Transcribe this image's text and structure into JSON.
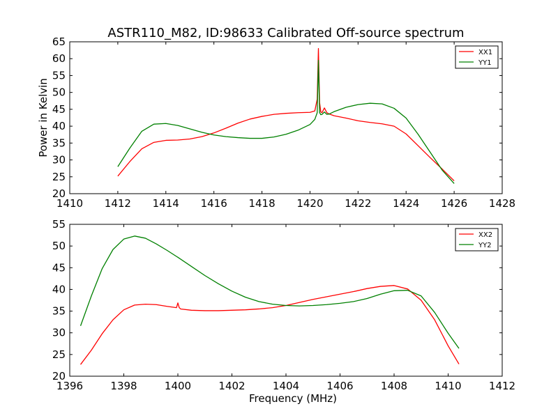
{
  "figure": {
    "title": "ASTR110_M82, ID:98633 Calibrated Off-source spectrum"
  },
  "chart_data": [
    {
      "type": "line",
      "title": "ASTR110_M82, ID:98633 Calibrated Off-source spectrum",
      "xlabel": "",
      "ylabel": "Power in Kelvin",
      "xlim": [
        1410,
        1428
      ],
      "ylim": [
        20,
        65
      ],
      "xticks": [
        1410,
        1412,
        1414,
        1416,
        1418,
        1420,
        1422,
        1424,
        1426,
        1428
      ],
      "yticks": [
        20,
        25,
        30,
        35,
        40,
        45,
        50,
        55,
        60,
        65
      ],
      "grid": false,
      "legend": "top-right",
      "series": [
        {
          "name": "XX1",
          "color": "#ff0000",
          "x": [
            1412.0,
            1412.5,
            1413.0,
            1413.5,
            1414.0,
            1414.5,
            1415.0,
            1415.5,
            1416.0,
            1416.5,
            1417.0,
            1417.5,
            1418.0,
            1418.5,
            1419.0,
            1419.5,
            1420.0,
            1420.2,
            1420.3,
            1420.35,
            1420.4,
            1420.45,
            1420.5,
            1420.6,
            1420.7,
            1420.8,
            1421.0,
            1421.5,
            1422.0,
            1422.5,
            1423.0,
            1423.5,
            1424.0,
            1424.5,
            1425.0,
            1425.5,
            1426.0
          ],
          "y": [
            25.2,
            29.5,
            33.3,
            35.2,
            35.8,
            35.9,
            36.2,
            36.9,
            38.0,
            39.4,
            40.9,
            42.1,
            42.9,
            43.5,
            43.8,
            44.0,
            44.1,
            44.5,
            48.0,
            63.0,
            47.0,
            44.2,
            44.0,
            45.4,
            44.0,
            43.6,
            43.1,
            42.4,
            41.6,
            41.1,
            40.7,
            40.0,
            37.7,
            34.2,
            30.7,
            27.3,
            23.8
          ]
        },
        {
          "name": "YY1",
          "color": "#008000",
          "x": [
            1412.0,
            1412.5,
            1413.0,
            1413.5,
            1414.0,
            1414.5,
            1415.0,
            1415.5,
            1416.0,
            1416.5,
            1417.0,
            1417.5,
            1418.0,
            1418.5,
            1419.0,
            1419.5,
            1420.0,
            1420.2,
            1420.3,
            1420.35,
            1420.4,
            1420.45,
            1420.5,
            1420.6,
            1420.7,
            1420.8,
            1421.0,
            1421.5,
            1422.0,
            1422.5,
            1423.0,
            1423.5,
            1424.0,
            1424.5,
            1425.0,
            1425.5,
            1426.0
          ],
          "y": [
            28.0,
            33.5,
            38.5,
            40.6,
            40.8,
            40.2,
            39.2,
            38.2,
            37.4,
            36.9,
            36.6,
            36.4,
            36.4,
            36.8,
            37.6,
            38.8,
            40.5,
            42.0,
            44.0,
            59.5,
            44.0,
            43.4,
            43.5,
            44.2,
            43.5,
            43.6,
            44.3,
            45.6,
            46.4,
            46.8,
            46.6,
            45.3,
            42.4,
            37.6,
            32.3,
            27.0,
            23.0
          ]
        }
      ]
    },
    {
      "type": "line",
      "title": "",
      "xlabel": "Frequency (MHz)",
      "ylabel": "",
      "xlim": [
        1396,
        1412
      ],
      "ylim": [
        20,
        55
      ],
      "xticks": [
        1396,
        1398,
        1400,
        1402,
        1404,
        1406,
        1408,
        1410,
        1412
      ],
      "yticks": [
        20,
        25,
        30,
        35,
        40,
        45,
        50,
        55
      ],
      "grid": false,
      "legend": "top-right",
      "series": [
        {
          "name": "XX2",
          "color": "#ff0000",
          "x": [
            1396.4,
            1396.8,
            1397.2,
            1397.6,
            1398.0,
            1398.4,
            1398.8,
            1399.2,
            1399.6,
            1399.95,
            1400.0,
            1400.05,
            1400.1,
            1400.5,
            1401.0,
            1401.5,
            1402.0,
            1402.5,
            1403.0,
            1403.5,
            1404.0,
            1404.5,
            1405.0,
            1405.5,
            1406.0,
            1406.5,
            1407.0,
            1407.5,
            1408.0,
            1408.5,
            1409.0,
            1409.5,
            1410.0,
            1410.4
          ],
          "y": [
            22.7,
            26.0,
            29.8,
            33.0,
            35.3,
            36.4,
            36.6,
            36.5,
            36.1,
            35.8,
            36.9,
            35.8,
            35.5,
            35.2,
            35.1,
            35.1,
            35.2,
            35.3,
            35.5,
            35.8,
            36.3,
            37.0,
            37.7,
            38.3,
            38.9,
            39.5,
            40.2,
            40.7,
            40.9,
            40.1,
            37.5,
            33.0,
            27.0,
            22.8
          ]
        },
        {
          "name": "YY2",
          "color": "#008000",
          "x": [
            1396.4,
            1396.8,
            1397.2,
            1397.6,
            1398.0,
            1398.4,
            1398.8,
            1399.2,
            1399.6,
            1400.0,
            1400.5,
            1401.0,
            1401.5,
            1402.0,
            1402.5,
            1403.0,
            1403.5,
            1404.0,
            1404.5,
            1405.0,
            1405.5,
            1406.0,
            1406.5,
            1407.0,
            1407.5,
            1408.0,
            1408.5,
            1409.0,
            1409.5,
            1410.0,
            1410.4
          ],
          "y": [
            31.6,
            38.5,
            44.8,
            49.2,
            51.6,
            52.3,
            51.8,
            50.5,
            49.0,
            47.4,
            45.3,
            43.2,
            41.3,
            39.6,
            38.2,
            37.2,
            36.6,
            36.3,
            36.2,
            36.3,
            36.5,
            36.8,
            37.2,
            37.9,
            38.9,
            39.7,
            39.8,
            38.5,
            34.7,
            29.9,
            26.4
          ]
        }
      ]
    }
  ]
}
